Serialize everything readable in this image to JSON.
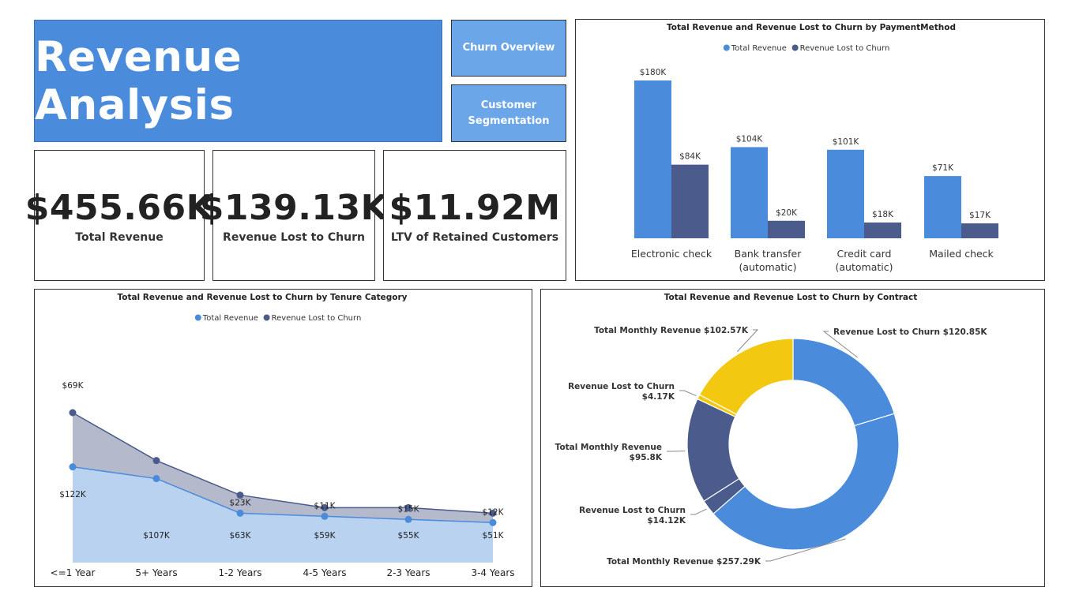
{
  "header": {
    "title": "Revenue Analysis"
  },
  "nav": {
    "churn_overview": "Churn Overview",
    "customer_segmentation_line1": "Customer",
    "customer_segmentation_line2": "Segmentation"
  },
  "kpis": [
    {
      "value": "$455.66K",
      "label": "Total Revenue"
    },
    {
      "value": "$139.13K",
      "label": "Revenue Lost to Churn"
    },
    {
      "value": "$11.92M",
      "label": "LTV of Retained Customers"
    }
  ],
  "colors": {
    "total": "#4a8bdc",
    "lost": "#4a5b8c",
    "yellow": "#f2c811",
    "area_total": "#b8d2f0",
    "area_lost": "#b4b9cc"
  },
  "chart_data": [
    {
      "type": "bar",
      "title": "Total Revenue and Revenue Lost to Churn by PaymentMethod",
      "categories": [
        [
          "Electronic check"
        ],
        [
          "Bank transfer",
          "(automatic)"
        ],
        [
          "Credit card",
          "(automatic)"
        ],
        [
          "Mailed check"
        ]
      ],
      "series": [
        {
          "name": "Total Revenue",
          "values": [
            180,
            104,
            101,
            71
          ],
          "labels": [
            "$180K",
            "$104K",
            "$101K",
            "$71K"
          ]
        },
        {
          "name": "Revenue Lost to Churn",
          "values": [
            84,
            20,
            18,
            17
          ],
          "labels": [
            "$84K",
            "$20K",
            "$18K",
            "$17K"
          ]
        }
      ],
      "legend": "top-center",
      "ylim": [
        0,
        180
      ]
    },
    {
      "type": "area",
      "title": "Total Revenue and Revenue Lost to Churn by Tenure Category",
      "categories": [
        "<=1 Year",
        "5+ Years",
        "1-2 Years",
        "4-5 Years",
        "2-3 Years",
        "3-4 Years"
      ],
      "series": [
        {
          "name": "Total Revenue",
          "values": [
            122,
            107,
            63,
            59,
            55,
            51
          ],
          "labels": [
            "$122K",
            "$107K",
            "$63K",
            "$59K",
            "$55K",
            "$51K"
          ]
        },
        {
          "name": "Revenue Lost to Churn",
          "values": [
            69,
            23,
            23,
            11,
            15,
            12
          ],
          "labels": [
            "$69K",
            "",
            "$23K",
            "$11K",
            "$15K",
            "$12K"
          ]
        }
      ],
      "stacked": true,
      "legend": "top-center"
    },
    {
      "type": "pie",
      "title": "Total Revenue and Revenue Lost to Churn by Contract",
      "slices": [
        {
          "label": "Revenue Lost to Churn $120.85K",
          "value": 120.85,
          "color": "#4a8bdc"
        },
        {
          "label": "Total Monthly Revenue $257.29K",
          "value": 257.29,
          "color": "#4a8bdc"
        },
        {
          "label": "Revenue Lost to Churn $14.12K",
          "value": 14.12,
          "color": "#4a5b8c"
        },
        {
          "label": "Total Monthly Revenue $95.8K",
          "value": 95.8,
          "color": "#4a5b8c"
        },
        {
          "label": "Revenue Lost to Churn $4.17K",
          "value": 4.17,
          "color": "#f2c811"
        },
        {
          "label": "Total Monthly Revenue $102.57K",
          "value": 102.57,
          "color": "#f2c811"
        }
      ]
    }
  ]
}
